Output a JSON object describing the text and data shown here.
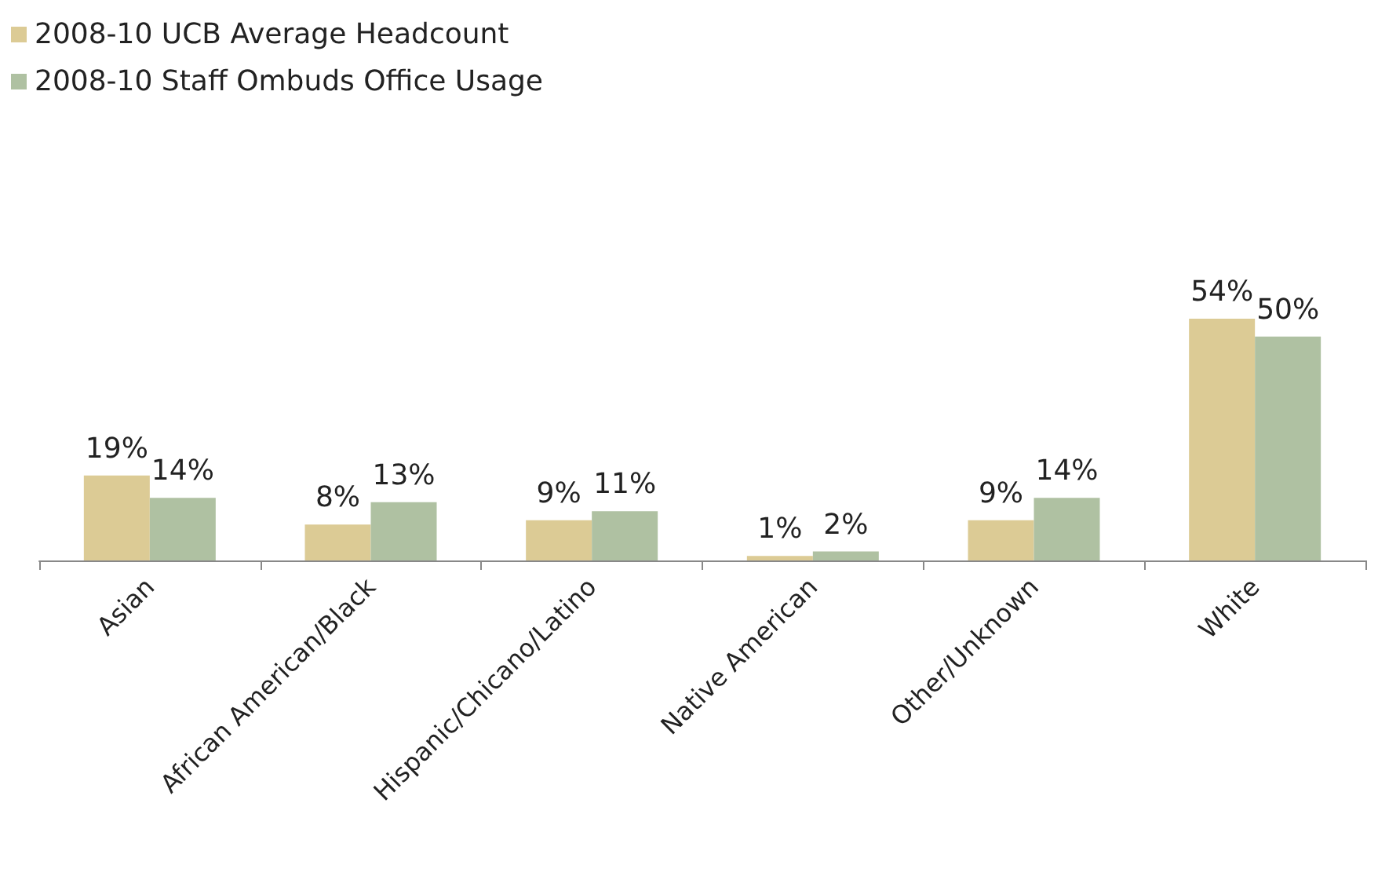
{
  "chart_data": {
    "type": "bar",
    "categories": [
      "Asian",
      "African American/Black",
      "Hispanic/Chicano/Latino",
      "Native American",
      "Other/Unknown",
      "White"
    ],
    "series": [
      {
        "name": "2008-10 UCB Average Headcount",
        "color": "#dccb95",
        "values": [
          19,
          8,
          9,
          1,
          9,
          54
        ],
        "value_labels": [
          "19%",
          "8%",
          "9%",
          "1%",
          "9%",
          "54%"
        ]
      },
      {
        "name": "2008-10 Staff Ombuds Office Usage",
        "color": "#afc1a2",
        "values": [
          14,
          13,
          11,
          2,
          14,
          50
        ],
        "value_labels": [
          "14%",
          "13%",
          "11%",
          "2%",
          "14%",
          "50%"
        ]
      }
    ],
    "legend": "top left",
    "grid": false
  }
}
